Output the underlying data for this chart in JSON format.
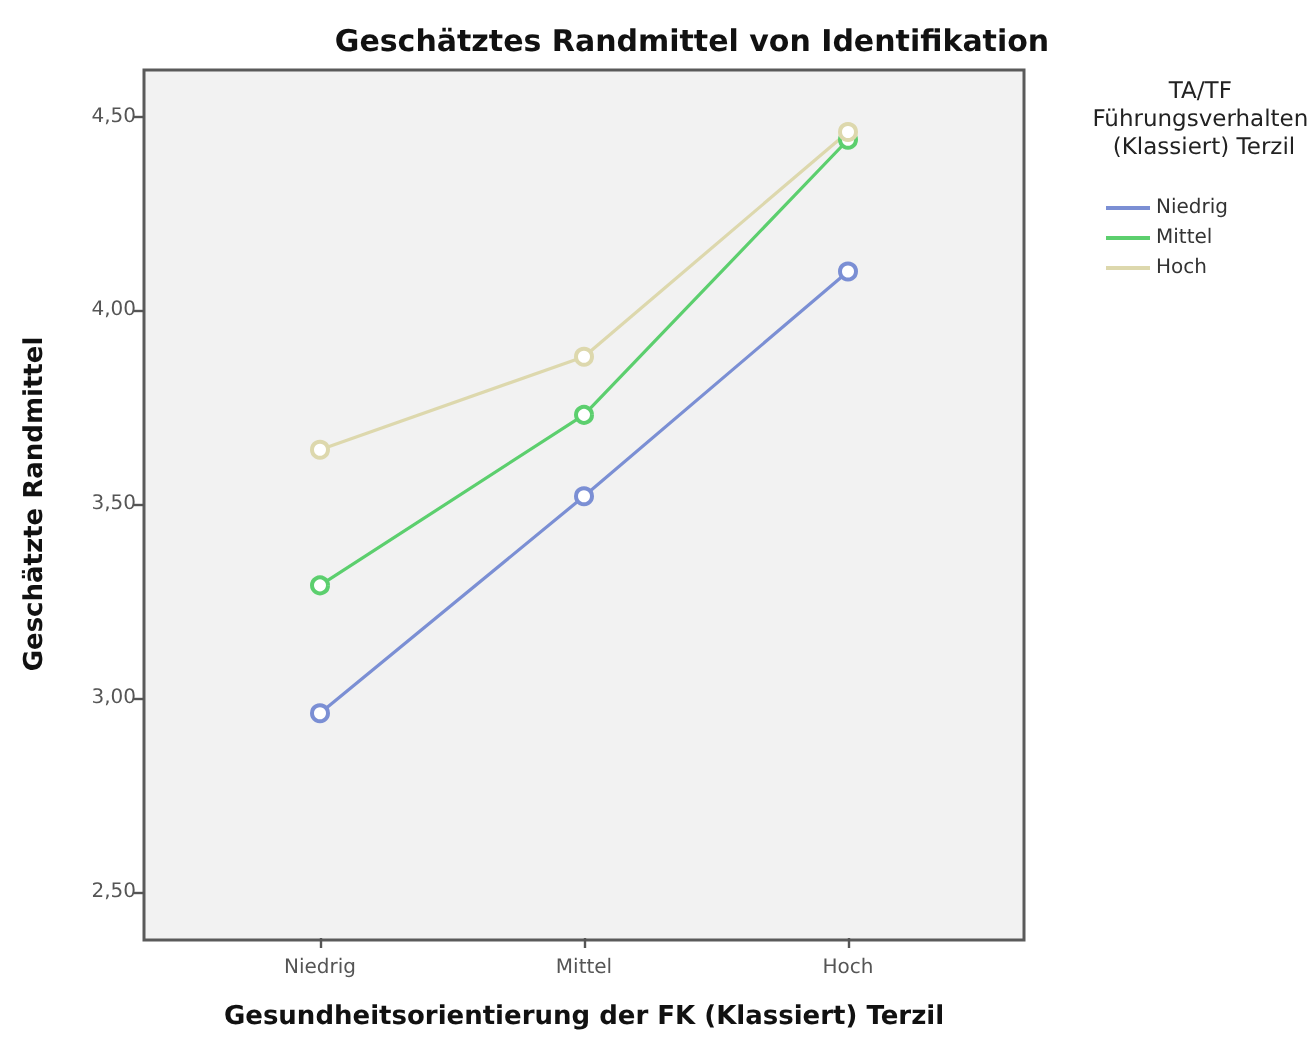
{
  "chart_data": {
    "type": "line",
    "title": "Geschätztes Randmittel von Identifikation",
    "xlabel": "Gesundheitsorientierung der FK (Klassiert) Terzil",
    "ylabel": "Geschätzte Randmittel",
    "legend_title": "TA/TF Führungsverhalten (Klassiert) Terzil",
    "categories": [
      "Niedrig",
      "Mittel",
      "Hoch"
    ],
    "series": [
      {
        "name": "Niedrig",
        "color": "#7b8fd4",
        "values": [
          2.96,
          3.52,
          4.1
        ]
      },
      {
        "name": "Mittel",
        "color": "#5ccf6e",
        "values": [
          3.29,
          3.73,
          4.44
        ]
      },
      {
        "name": "Hoch",
        "color": "#ddd8ad",
        "values": [
          3.64,
          3.88,
          4.46
        ]
      }
    ],
    "ylim": [
      2.38,
      4.62
    ],
    "yticks": [
      {
        "value": 2.5,
        "label": "2,50"
      },
      {
        "value": 3,
        "label": "3,00"
      },
      {
        "value": 3.5,
        "label": "3,50"
      },
      {
        "value": 4,
        "label": "4,00"
      },
      {
        "value": 4.5,
        "label": "4,50"
      }
    ],
    "legend": "top right",
    "marker": "circle",
    "line_style": "solid"
  }
}
